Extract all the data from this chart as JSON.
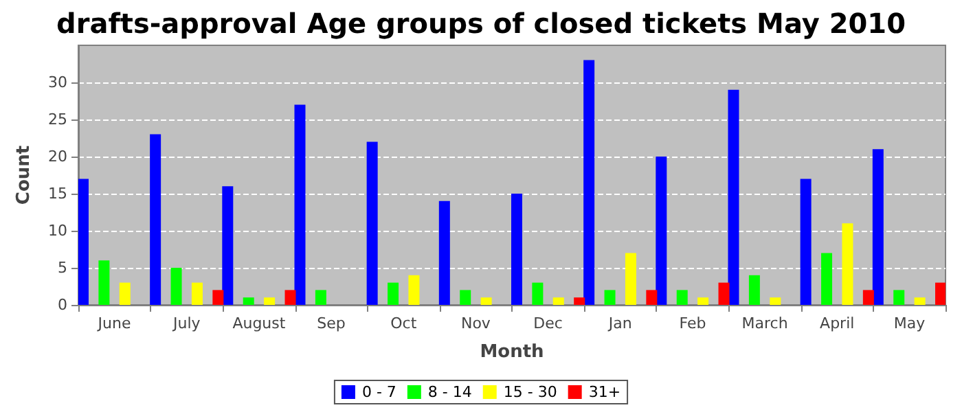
{
  "chart_data": {
    "type": "bar",
    "title": "drafts-approval Age groups of closed tickets May 2010",
    "xlabel": "Month",
    "ylabel": "Count",
    "categories": [
      "June",
      "July",
      "August",
      "Sep",
      "Oct",
      "Nov",
      "Dec",
      "Jan",
      "Feb",
      "March",
      "April",
      "May"
    ],
    "series": [
      {
        "name": "0 - 7",
        "color": "#0000ff",
        "values": [
          17,
          23,
          16,
          27,
          22,
          14,
          15,
          33,
          20,
          29,
          17,
          21
        ]
      },
      {
        "name": "8 - 14",
        "color": "#00ff00",
        "values": [
          6,
          5,
          1,
          2,
          3,
          2,
          3,
          2,
          2,
          4,
          7,
          2
        ]
      },
      {
        "name": "15 - 30",
        "color": "#ffff00",
        "values": [
          3,
          3,
          1,
          0,
          4,
          1,
          1,
          7,
          1,
          1,
          11,
          1
        ]
      },
      {
        "name": "31+",
        "color": "#ff0000",
        "values": [
          0,
          2,
          2,
          0,
          0,
          0,
          1,
          2,
          3,
          0,
          2,
          3
        ]
      }
    ],
    "ylim": [
      0,
      35
    ],
    "yticks": [
      0,
      5,
      10,
      15,
      20,
      25,
      30
    ],
    "grid": "y",
    "legend": "bottom"
  }
}
